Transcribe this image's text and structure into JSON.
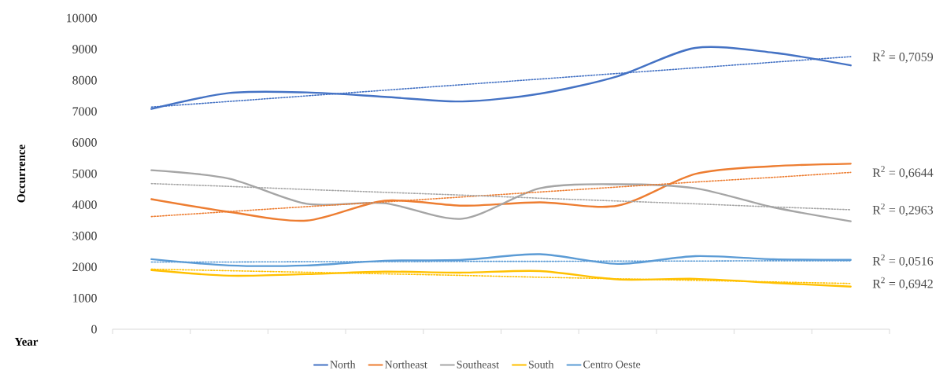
{
  "chart_data": {
    "type": "line",
    "xlabel": "Year",
    "ylabel": "Occurrence",
    "categories": [
      null,
      null,
      null,
      null,
      null,
      null,
      null,
      null,
      null,
      null
    ],
    "ylim": [
      0,
      10000
    ],
    "yticks": [
      0,
      1000,
      2000,
      3000,
      4000,
      5000,
      6000,
      7000,
      8000,
      9000,
      10000
    ],
    "grid": false,
    "legend": "bottom",
    "marker": "none",
    "series": [
      {
        "name": "North",
        "color": "#4472c4",
        "values": [
          7080,
          7590,
          7610,
          7470,
          7320,
          7570,
          8130,
          9040,
          8890,
          8480
        ]
      },
      {
        "name": "Northeast",
        "color": "#ed7d31",
        "values": [
          4180,
          3770,
          3490,
          4130,
          3970,
          4080,
          3970,
          4990,
          5240,
          5320
        ]
      },
      {
        "name": "Southeast",
        "color": "#a5a5a5",
        "values": [
          5110,
          4840,
          4030,
          4050,
          3550,
          4530,
          4660,
          4530,
          3920,
          3470
        ]
      },
      {
        "name": "South",
        "color": "#ffc000",
        "values": [
          1900,
          1720,
          1770,
          1850,
          1820,
          1870,
          1600,
          1620,
          1490,
          1370
        ]
      },
      {
        "name": "Centro Oeste",
        "color": "#5b9bd5",
        "values": [
          2250,
          2050,
          2050,
          2200,
          2230,
          2410,
          2100,
          2350,
          2250,
          2230
        ]
      },
      {
        "name": "R$^{2}$ = 0,7059",
        "color": "#4472c4",
        "line_style": "dotted",
        "values": [
          7140,
          7320,
          7500,
          7680,
          7860,
          8040,
          8220,
          8400,
          8580,
          8760
        ]
      },
      {
        "name": "R$^{2}$ = 0,6644",
        "color": "#ed7d31",
        "line_style": "dotted",
        "values": [
          3620,
          3780,
          3940,
          4090,
          4250,
          4410,
          4570,
          4730,
          4880,
          5040
        ]
      },
      {
        "name": "R$^{2}$ = 0,2963",
        "color": "#a5a5a5",
        "line_style": "dotted",
        "values": [
          4680,
          4590,
          4490,
          4400,
          4310,
          4210,
          4120,
          4030,
          3930,
          3840
        ]
      },
      {
        "name": "R$^{2}$ = 0,0516",
        "color": "#5b9bd5",
        "line_style": "dotted",
        "values": [
          2160,
          2160,
          2170,
          2170,
          2180,
          2180,
          2190,
          2190,
          2200,
          2200
        ]
      },
      {
        "name": "R$^{2}$ = 0,6942",
        "color": "#ffc000",
        "line_style": "dotted",
        "values": [
          1930,
          1880,
          1830,
          1780,
          1730,
          1670,
          1620,
          1570,
          1520,
          1470
        ]
      }
    ]
  }
}
